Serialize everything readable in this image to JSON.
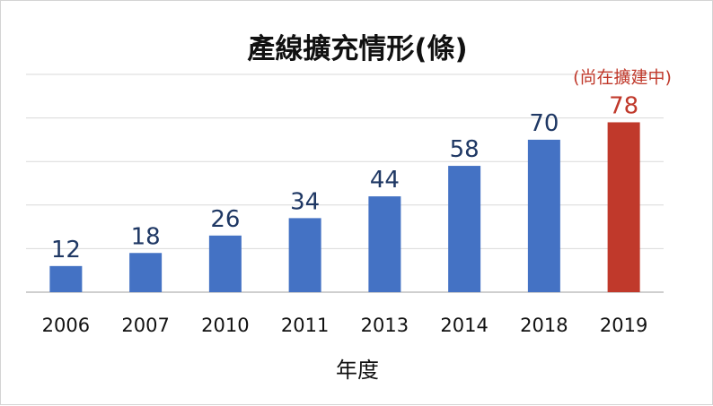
{
  "chart_data": {
    "type": "bar",
    "title": "產線擴充情形(條)",
    "xlabel": "年度",
    "ylabel": "",
    "categories": [
      "2006",
      "2007",
      "2010",
      "2011",
      "2013",
      "2014",
      "2018",
      "2019"
    ],
    "values": [
      12,
      18,
      26,
      34,
      44,
      58,
      70,
      78
    ],
    "ylim": [
      0,
      100
    ],
    "grid": true,
    "legend": "none",
    "bar_color": "#4472C4",
    "highlight_color": "#C0392B",
    "value_label_color": "#1F3864",
    "highlight_index": 7,
    "annotation": "(尚在擴建中)"
  }
}
